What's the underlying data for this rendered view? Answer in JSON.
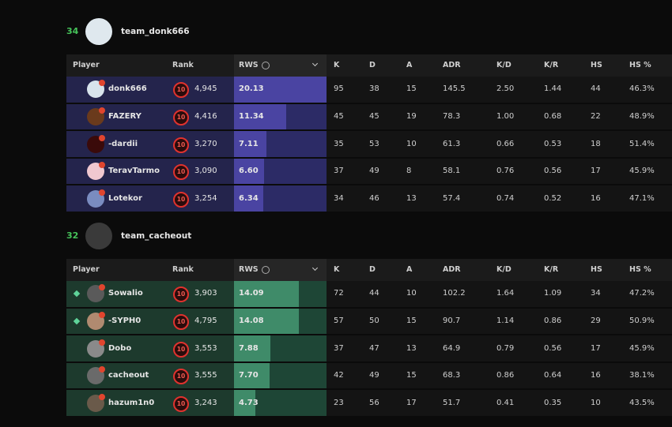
{
  "teams": [
    {
      "score": "34",
      "name": "team_donk666",
      "columns": [
        "Player",
        "Rank",
        "RWS",
        "K",
        "D",
        "A",
        "ADR",
        "K/D",
        "K/R",
        "HS",
        "HS %"
      ],
      "players": [
        {
          "name": "donk666",
          "level": "10",
          "rank": "4,945",
          "rws": {
            "value": 20.13,
            "label": "20.13"
          },
          "k": "95",
          "d": "38",
          "a": "15",
          "adr": "145.5",
          "kd": "2.50",
          "kr": "1.44",
          "hs": "44",
          "hsp": "46.3%"
        },
        {
          "name": "FAZERY",
          "level": "10",
          "rank": "4,416",
          "rws": {
            "value": 11.34,
            "label": "11.34"
          },
          "k": "45",
          "d": "45",
          "a": "19",
          "adr": "78.3",
          "kd": "1.00",
          "kr": "0.68",
          "hs": "22",
          "hsp": "48.9%"
        },
        {
          "name": "-dardii",
          "level": "10",
          "rank": "3,270",
          "rws": {
            "value": 7.11,
            "label": "7.11"
          },
          "k": "35",
          "d": "53",
          "a": "10",
          "adr": "61.3",
          "kd": "0.66",
          "kr": "0.53",
          "hs": "18",
          "hsp": "51.4%"
        },
        {
          "name": "TeravTarmo",
          "level": "10",
          "rank": "3,090",
          "rws": {
            "value": 6.6,
            "label": "6.60"
          },
          "k": "37",
          "d": "49",
          "a": "8",
          "adr": "58.1",
          "kd": "0.76",
          "kr": "0.56",
          "hs": "17",
          "hsp": "45.9%"
        },
        {
          "name": "Lotekor",
          "level": "10",
          "rank": "3,254",
          "rws": {
            "value": 6.34,
            "label": "6.34"
          },
          "k": "34",
          "d": "46",
          "a": "13",
          "adr": "57.4",
          "kd": "0.74",
          "kr": "0.52",
          "hs": "16",
          "hsp": "47.1%"
        }
      ]
    },
    {
      "score": "32",
      "name": "team_cacheout",
      "columns": [
        "Player",
        "Rank",
        "RWS",
        "K",
        "D",
        "A",
        "ADR",
        "K/D",
        "K/R",
        "HS",
        "HS %"
      ],
      "players": [
        {
          "name": "Sowalio",
          "level": "10",
          "rank": "3,903",
          "rws": {
            "value": 14.09,
            "label": "14.09"
          },
          "k": "72",
          "d": "44",
          "a": "10",
          "adr": "102.2",
          "kd": "1.64",
          "kr": "1.09",
          "hs": "34",
          "hsp": "47.2%"
        },
        {
          "name": "-SYPH0",
          "level": "10",
          "rank": "4,795",
          "rws": {
            "value": 14.08,
            "label": "14.08"
          },
          "k": "57",
          "d": "50",
          "a": "15",
          "adr": "90.7",
          "kd": "1.14",
          "kr": "0.86",
          "hs": "29",
          "hsp": "50.9%"
        },
        {
          "name": "Dobo",
          "level": "10",
          "rank": "3,553",
          "rws": {
            "value": 7.88,
            "label": "7.88"
          },
          "k": "37",
          "d": "47",
          "a": "13",
          "adr": "64.9",
          "kd": "0.79",
          "kr": "0.56",
          "hs": "17",
          "hsp": "45.9%"
        },
        {
          "name": "cacheout",
          "level": "10",
          "rank": "3,555",
          "rws": {
            "value": 7.7,
            "label": "7.70"
          },
          "k": "42",
          "d": "49",
          "a": "15",
          "adr": "68.3",
          "kd": "0.86",
          "kr": "0.64",
          "hs": "16",
          "hsp": "38.1%"
        },
        {
          "name": "hazum1n0",
          "level": "10",
          "rank": "3,243",
          "rws": {
            "value": 4.73,
            "label": "4.73"
          },
          "k": "23",
          "d": "56",
          "a": "17",
          "adr": "51.7",
          "kd": "0.41",
          "kr": "0.35",
          "hs": "10",
          "hsp": "43.5%"
        }
      ]
    }
  ]
}
